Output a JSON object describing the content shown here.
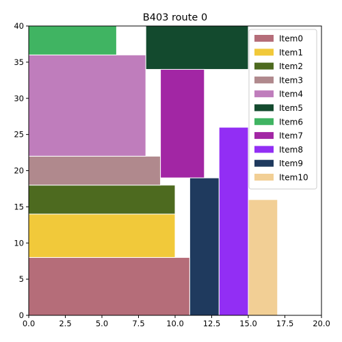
{
  "chart_data": {
    "type": "bar",
    "subtype": "rectangle-packing",
    "title": "B403 route 0",
    "xlabel": "",
    "ylabel": "",
    "xlim": [
      0,
      20
    ],
    "ylim": [
      0,
      40
    ],
    "xticks": [
      "0.0",
      "2.5",
      "5.0",
      "7.5",
      "10.0",
      "12.5",
      "15.0",
      "17.5",
      "20.0"
    ],
    "xtick_values": [
      0,
      2.5,
      5,
      7.5,
      10,
      12.5,
      15,
      17.5,
      20
    ],
    "yticks": [
      "0",
      "5",
      "10",
      "15",
      "20",
      "25",
      "30",
      "35",
      "40"
    ],
    "ytick_values": [
      0,
      5,
      10,
      15,
      20,
      25,
      30,
      35,
      40
    ],
    "grid": false,
    "legend_position": "top-right",
    "series": [
      {
        "name": "Item0",
        "color": "#b56d79",
        "x": 0,
        "y": 0,
        "width": 11,
        "height": 8
      },
      {
        "name": "Item1",
        "color": "#f1c93a",
        "x": 0,
        "y": 8,
        "width": 10,
        "height": 6
      },
      {
        "name": "Item2",
        "color": "#4d6a1f",
        "x": 0,
        "y": 14,
        "width": 10,
        "height": 4
      },
      {
        "name": "Item3",
        "color": "#b0898d",
        "x": 0,
        "y": 18,
        "width": 9,
        "height": 4
      },
      {
        "name": "Item4",
        "color": "#bf7dbc",
        "x": 0,
        "y": 22,
        "width": 8,
        "height": 14
      },
      {
        "name": "Item5",
        "color": "#134a2e",
        "x": 8,
        "y": 34,
        "width": 7,
        "height": 6
      },
      {
        "name": "Item6",
        "color": "#40b462",
        "x": 0,
        "y": 36,
        "width": 6,
        "height": 4
      },
      {
        "name": "Item7",
        "color": "#a226a4",
        "x": 9,
        "y": 19,
        "width": 3,
        "height": 15
      },
      {
        "name": "Item8",
        "color": "#922ef4",
        "x": 13,
        "y": 0,
        "width": 2,
        "height": 26
      },
      {
        "name": "Item9",
        "color": "#1f3a5e",
        "x": 11,
        "y": 0,
        "width": 2,
        "height": 19
      },
      {
        "name": "Item10",
        "color": "#f2cf95",
        "x": 15,
        "y": 0,
        "width": 2,
        "height": 16
      }
    ]
  }
}
